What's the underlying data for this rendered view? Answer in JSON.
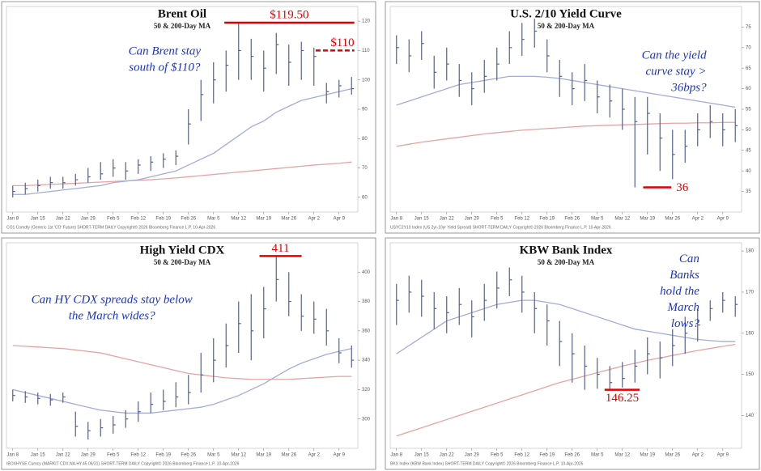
{
  "chart_data": [
    {
      "type": "ohlc",
      "title": "Brent Oil",
      "subtitle": "50 & 200-Day MA",
      "annotation": [
        "Can Brent stay",
        "south of $110?"
      ],
      "markers": [
        {
          "value": 119.5,
          "label": "$119.50",
          "style": "solid"
        },
        {
          "value": 110,
          "label": "$110",
          "style": "dashed"
        }
      ],
      "footer": "CO1 Comdty (Generic 1st 'CO' Future) SHORT-TERM DAILY  Copyright© 2026 Bloomberg Finance L.P.  10-Apr-2026",
      "categories": [
        "Jan 8",
        null,
        "Jan 15",
        null,
        "Jan 22",
        null,
        "Jan 29",
        null,
        "Feb 5",
        null,
        "Feb 12",
        null,
        "Feb 19",
        null,
        "Feb 26",
        null,
        "Mar 5",
        null,
        "Mar 12",
        null,
        "Mar 19",
        null,
        "Mar 26",
        null,
        "Apr 2",
        null,
        "Apr 9",
        null
      ],
      "price": {
        "color": "#56608c",
        "high": [
          64,
          65,
          66,
          67,
          67,
          68,
          70,
          72,
          73,
          72,
          73,
          74,
          75,
          76,
          90,
          100,
          106,
          110,
          119.5,
          114,
          110,
          116,
          112,
          113,
          111,
          99,
          100,
          101
        ],
        "low": [
          60,
          61,
          62,
          63,
          63,
          64,
          65,
          66,
          67,
          66,
          68,
          69,
          70,
          71,
          78,
          86,
          92,
          96,
          100,
          100,
          96,
          102,
          98,
          100,
          98,
          92,
          94,
          95
        ],
        "close": [
          62,
          63,
          64,
          65,
          65,
          66,
          67,
          68,
          70,
          69,
          71,
          72,
          73,
          74,
          85,
          95,
          100,
          105,
          110,
          108,
          104,
          112,
          106,
          110,
          108,
          96,
          98,
          97
        ]
      },
      "ma50": {
        "color": "#a3acd8",
        "values": [
          61,
          61,
          61.5,
          62,
          62.5,
          63,
          63.5,
          64,
          65,
          65.5,
          66,
          67,
          68,
          69,
          71,
          73,
          75,
          78,
          81,
          84,
          86,
          89,
          91,
          93,
          94,
          95,
          96,
          97
        ]
      },
      "ma200": {
        "color": "#e6a3a3",
        "values": [
          64,
          64,
          64.2,
          64.4,
          64.6,
          64.8,
          65,
          65.2,
          65.4,
          65.6,
          65.8,
          66,
          66.3,
          66.6,
          67,
          67.4,
          67.8,
          68.2,
          68.6,
          69,
          69.4,
          69.8,
          70.2,
          70.6,
          71,
          71.3,
          71.6,
          72
        ]
      },
      "ylim": [
        55,
        125
      ],
      "yticks": [
        60,
        70,
        80,
        90,
        100,
        110,
        120
      ]
    },
    {
      "type": "ohlc",
      "title": "U.S. 2/10 Yield Curve",
      "subtitle": "50 & 200-Day MA",
      "annotation": [
        "Can the yield",
        "curve stay >",
        "36bps?"
      ],
      "markers": [
        {
          "value": 36,
          "style": "solid"
        }
      ],
      "footer": "USYC2Y10 Index (US 2yr-10yr Yield Spread) SHORT-TERM DAILY  Copyright© 2026 Bloomberg Finance L.P.  10-Apr-2026",
      "categories": [
        "Jan 8",
        null,
        "Jan 15",
        null,
        "Jan 22",
        null,
        "Jan 29",
        null,
        "Feb 5",
        null,
        "Feb 12",
        null,
        "Feb 19",
        null,
        "Feb 26",
        null,
        "Mar 5",
        null,
        "Mar 12",
        null,
        "Mar 19",
        null,
        "Mar 26",
        null,
        "Apr 2",
        null,
        "Apr 9",
        null
      ],
      "price": {
        "color": "#56608c",
        "high": [
          73,
          72,
          74,
          68,
          70,
          66,
          64,
          67,
          70,
          74,
          76,
          77,
          72,
          67,
          64,
          66,
          62,
          61,
          60,
          58,
          58,
          54,
          50,
          50,
          54,
          56,
          54,
          55
        ],
        "low": [
          66,
          64,
          67,
          60,
          62,
          58,
          56,
          59,
          62,
          66,
          68,
          70,
          64,
          58,
          56,
          57,
          54,
          53,
          50,
          36,
          44,
          40,
          38,
          42,
          46,
          48,
          46,
          47
        ],
        "close": [
          70,
          68,
          71,
          64,
          66,
          62,
          60,
          63,
          66,
          70,
          72,
          74,
          68,
          63,
          60,
          62,
          58,
          57,
          55,
          52,
          54,
          48,
          44,
          46,
          50,
          52,
          50,
          51
        ]
      },
      "ma50": {
        "color": "#a3acd8",
        "values": [
          56,
          57,
          58,
          59,
          60,
          61,
          61.5,
          62,
          62.5,
          63,
          63,
          63,
          62.8,
          62.5,
          62,
          61.5,
          61,
          60.5,
          60,
          59.5,
          59,
          58.5,
          58,
          57.5,
          57,
          56.5,
          56,
          55.5
        ]
      },
      "ma200": {
        "color": "#e6a3a3",
        "values": [
          46,
          46.5,
          47,
          47.4,
          47.8,
          48.2,
          48.6,
          49,
          49.3,
          49.6,
          49.9,
          50.1,
          50.3,
          50.5,
          50.7,
          50.9,
          51,
          51.1,
          51.2,
          51.3,
          51.4,
          51.5,
          51.6,
          51.6,
          51.7,
          51.7,
          51.8,
          51.8
        ]
      },
      "ylim": [
        30,
        80
      ],
      "yticks": [
        35,
        40,
        45,
        50,
        55,
        60,
        65,
        70,
        75
      ]
    },
    {
      "type": "ohlc",
      "title": "High Yield CDX",
      "subtitle": "50 & 200-Day MA",
      "annotation": [
        "Can HY CDX spreads stay below",
        "the March wides?"
      ],
      "markers": [
        {
          "value": 411,
          "style": "solid"
        }
      ],
      "footer": "IBOXHYSE Curncy (MARKIT CDX.NA.HY.45 06/31) SHORT-TERM DAILY  Copyright© 2026 Bloomberg Finance L.P.  10-Apr-2026",
      "categories": [
        "Jan 8",
        null,
        "Jan 15",
        null,
        "Jan 22",
        null,
        "Jan 29",
        null,
        "Feb 5",
        null,
        "Feb 12",
        null,
        "Feb 19",
        null,
        "Feb 26",
        null,
        "Mar 5",
        null,
        "Mar 12",
        null,
        "Mar 19",
        null,
        "Mar 26",
        null,
        "Apr 2",
        null,
        "Apr 9",
        null
      ],
      "price": {
        "color": "#56608c",
        "high": [
          320,
          319,
          318,
          317,
          318,
          305,
          298,
          300,
          302,
          306,
          312,
          318,
          320,
          325,
          330,
          345,
          355,
          365,
          380,
          385,
          390,
          411,
          400,
          385,
          380,
          375,
          355,
          350
        ],
        "low": [
          312,
          311,
          310,
          309,
          311,
          288,
          286,
          288,
          290,
          294,
          298,
          304,
          306,
          308,
          310,
          318,
          325,
          335,
          345,
          340,
          355,
          380,
          370,
          360,
          358,
          350,
          338,
          335
        ],
        "close": [
          316,
          315,
          314,
          313,
          315,
          295,
          292,
          294,
          296,
          300,
          305,
          310,
          312,
          315,
          318,
          330,
          340,
          350,
          365,
          360,
          375,
          395,
          380,
          370,
          368,
          360,
          345,
          340
        ]
      },
      "ma50": {
        "color": "#a3acd8",
        "values": [
          320,
          318,
          316,
          314,
          312,
          310,
          308,
          306,
          305,
          304,
          304,
          304,
          305,
          306,
          307,
          308,
          310,
          313,
          316,
          320,
          324,
          329,
          334,
          338,
          341,
          344,
          346,
          348
        ]
      },
      "ma200": {
        "color": "#e6a3a3",
        "values": [
          350,
          349.5,
          349,
          348.5,
          348,
          347,
          346,
          345,
          343,
          341,
          339,
          337,
          335,
          333,
          331,
          330,
          329,
          328,
          327.5,
          327,
          327,
          327,
          327,
          327.5,
          328,
          328.5,
          329,
          329
        ]
      },
      "ylim": [
        280,
        420
      ],
      "yticks": [
        300,
        320,
        340,
        360,
        380,
        400
      ]
    },
    {
      "type": "ohlc",
      "title": "KBW Bank Index",
      "subtitle": "50 & 200-Day MA",
      "annotation": [
        "Can",
        "Banks",
        "hold the",
        "March",
        "lows?"
      ],
      "markers": [
        {
          "value": 146.25,
          "label": "146.25",
          "style": "solid"
        }
      ],
      "footer": "BKX Index (KBW Bank Index) SHORT-TERM DAILY  Copyright© 2026 Bloomberg Finance L.P.  10-Apr-2026",
      "categories": [
        "Jan 8",
        null,
        "Jan 15",
        null,
        "Jan 22",
        null,
        "Jan 29",
        null,
        "Feb 5",
        null,
        "Feb 12",
        null,
        "Feb 19",
        null,
        "Feb 26",
        null,
        "Mar 5",
        null,
        "Mar 12",
        null,
        "Mar 19",
        null,
        "Mar 26",
        null,
        "Apr 2",
        null,
        "Apr 9",
        null
      ],
      "price": {
        "color": "#56608c",
        "high": [
          172,
          174,
          173,
          170,
          169,
          171,
          168,
          172,
          175,
          176,
          174,
          170,
          167,
          163,
          160,
          157,
          154,
          152,
          153,
          156,
          159,
          158,
          161,
          164,
          166,
          168,
          170,
          169
        ],
        "low": [
          162,
          165,
          164,
          161,
          160,
          162,
          159,
          163,
          166,
          169,
          165,
          160,
          157,
          152,
          148,
          146.25,
          146.5,
          146.3,
          146.8,
          148,
          150,
          149,
          152,
          155,
          158,
          163,
          165,
          164
        ],
        "close": [
          168,
          170,
          169,
          166,
          165,
          167,
          164,
          168,
          171,
          173,
          170,
          166,
          163,
          158,
          155,
          152,
          150,
          148,
          149,
          152,
          155,
          154,
          157,
          160,
          162,
          166,
          168,
          167
        ]
      },
      "ma50": {
        "color": "#a3acd8",
        "values": [
          155,
          157,
          159,
          161,
          163,
          164,
          165,
          166,
          167,
          167.5,
          168,
          168,
          167.5,
          167,
          166,
          165,
          164,
          163,
          162,
          161,
          160.5,
          160,
          159.5,
          159,
          158.5,
          158.2,
          158,
          158
        ]
      },
      "ma200": {
        "color": "#e6a3a3",
        "values": [
          135,
          136,
          137,
          138,
          139,
          140,
          141,
          142,
          143,
          144,
          145,
          146,
          147,
          148,
          148.8,
          149.6,
          150.4,
          151.2,
          152,
          152.7,
          153.4,
          154,
          154.6,
          155.2,
          155.8,
          156.3,
          156.8,
          157.3
        ]
      },
      "ylim": [
        132,
        182
      ],
      "yticks": [
        140,
        150,
        160,
        170,
        180
      ]
    }
  ]
}
